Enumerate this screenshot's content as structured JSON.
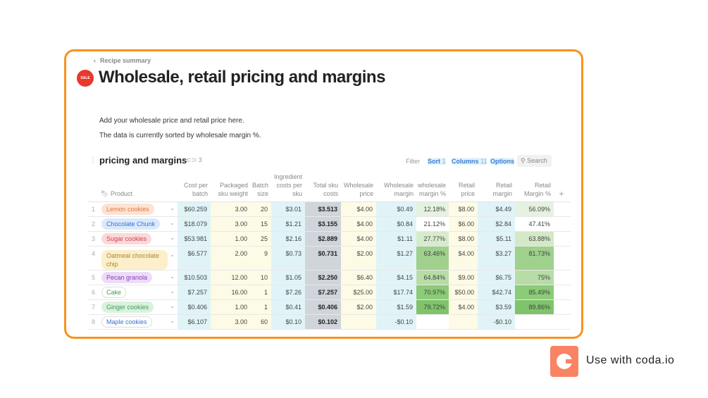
{
  "breadcrumb": "Recipe summary",
  "sale_icon_text": "SALE",
  "title": "Wholesale, retail pricing and margins",
  "intro": [
    "Add your wholesale price and retail price here.",
    "The data is currently sorted by wholesale margin %."
  ],
  "table": {
    "name": "pricing and margins",
    "link_count": "3",
    "toolbar": {
      "filter": "Filter",
      "sort": "Sort",
      "sort_count": "1",
      "columns": "Columns",
      "columns_count": "11",
      "options": "Options",
      "search": "Search"
    },
    "columns": [
      "Product",
      "Cost per batch",
      "Packaged sku weight",
      "Batch size",
      "Ingredient costs per sku",
      "Total sku costs",
      "Wholesale price",
      "Wholesale margin",
      "wholesale margin %",
      "Retail price",
      "Retail margin",
      "Retail Margin %"
    ],
    "rows": [
      {
        "n": "1",
        "product": "Lemon cookies",
        "chip_bg": "#fde3d3",
        "chip_fg": "#d9783f",
        "cells": [
          "$60.259",
          "3.00",
          "20",
          "$3.01",
          "$3.513",
          "$4.00",
          "$0.49",
          "12.18%",
          "$8.00",
          "$4.49",
          "56.09%"
        ],
        "wm_bg": "#e6f2e0",
        "rm_bg": "#e6f2e0"
      },
      {
        "n": "2",
        "product": "Chocolate Chunk",
        "chip_bg": "#dbe9fc",
        "chip_fg": "#3a72cf",
        "cells": [
          "$18.079",
          "3.00",
          "15",
          "$1.21",
          "$3.155",
          "$4.00",
          "$0.84",
          "21.12%",
          "$6.00",
          "$2.84",
          "47.41%"
        ],
        "wm_bg": "#ffffff",
        "rm_bg": "#ffffff"
      },
      {
        "n": "3",
        "product": "Sugar cookies",
        "chip_bg": "#fbd9da",
        "chip_fg": "#cf4350",
        "cells": [
          "$53.981",
          "1.00",
          "25",
          "$2.16",
          "$2.889",
          "$4.00",
          "$1.11",
          "27.77%",
          "$8.00",
          "$5.11",
          "63.88%"
        ],
        "wm_bg": "#d7ebcd",
        "rm_bg": "#d3e9c8"
      },
      {
        "n": "4",
        "product": "Oatmeal chocolate chip",
        "chip_bg": "#fcefc9",
        "chip_fg": "#a8873a",
        "cells": [
          "$6.577",
          "2.00",
          "9",
          "$0.73",
          "$0.731",
          "$2.00",
          "$1.27",
          "63.46%",
          "$4.00",
          "$3.27",
          "81.73%"
        ],
        "wm_bg": "#9fd08c",
        "rm_bg": "#9fd08c"
      },
      {
        "n": "5",
        "product": "Pecan granola",
        "chip_bg": "#eddcf8",
        "chip_fg": "#8a3dc2",
        "cells": [
          "$10.503",
          "12.00",
          "10",
          "$1.05",
          "$2.250",
          "$6.40",
          "$4.15",
          "64.84%",
          "$9.00",
          "$6.75",
          "75%"
        ],
        "wm_bg": "#b7dca6",
        "rm_bg": "#b7dca6"
      },
      {
        "n": "6",
        "product": "Cake",
        "chip_bg": "#ffffff",
        "chip_fg": "#3f9a5a",
        "cells": [
          "$7.257",
          "16.00",
          "1",
          "$7.26",
          "$7.257",
          "$25.00",
          "$17.74",
          "70.97%",
          "$50.00",
          "$42.74",
          "85.49%"
        ],
        "wm_bg": "#8ccb77",
        "rm_bg": "#8ccb77"
      },
      {
        "n": "7",
        "product": "Ginger cookies",
        "chip_bg": "#d9f2dc",
        "chip_fg": "#3f9a5a",
        "cells": [
          "$0.406",
          "1.00",
          "1",
          "$0.41",
          "$0.406",
          "$2.00",
          "$1.59",
          "79.72%",
          "$4.00",
          "$3.59",
          "89.86%"
        ],
        "wm_bg": "#7fc46a",
        "rm_bg": "#7fc46a"
      },
      {
        "n": "8",
        "product": "Maple cookies",
        "chip_bg": "#ffffff",
        "chip_fg": "#3a72cf",
        "cells": [
          "$6.107",
          "3.00",
          "60",
          "$0.10",
          "$0.102",
          "",
          "-$0.10",
          "",
          "",
          "-$0.10",
          ""
        ],
        "wm_bg": "#ffffff",
        "rm_bg": "#ffffff"
      }
    ]
  },
  "promo": {
    "text": "Use with coda.io"
  },
  "colors": {
    "frame": "#f7931e",
    "accent": "#3d7ad6",
    "coda": "#f98363"
  }
}
